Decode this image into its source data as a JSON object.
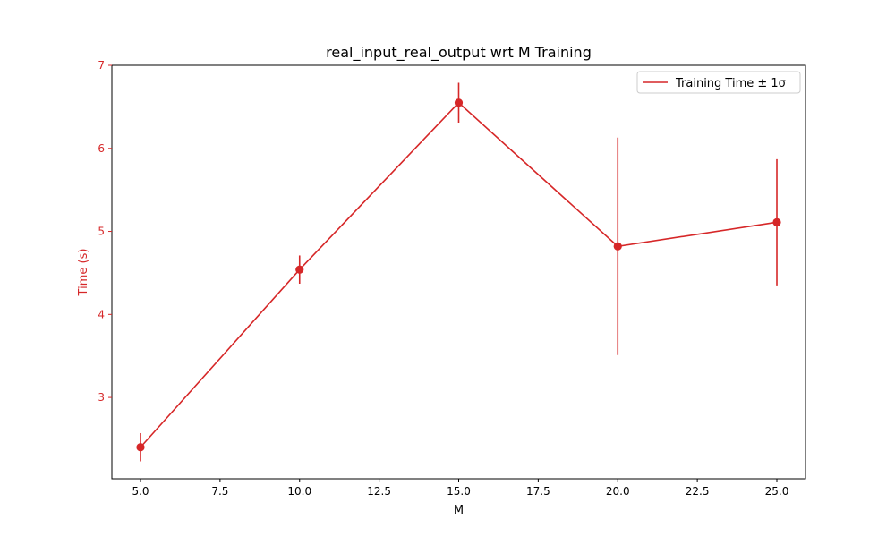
{
  "chart_data": {
    "type": "line",
    "title": "real_input_real_output wrt M Training",
    "xlabel": "M",
    "ylabel": "Time (s)",
    "xlim": [
      4.1,
      25.9
    ],
    "ylim": [
      2.02,
      7.0
    ],
    "x_ticks": [
      5.0,
      7.5,
      10.0,
      12.5,
      15.0,
      17.5,
      20.0,
      22.5,
      25.0
    ],
    "x_tick_labels": [
      "5.0",
      "7.5",
      "10.0",
      "12.5",
      "15.0",
      "17.5",
      "20.0",
      "22.5",
      "25.0"
    ],
    "y_ticks": [
      3,
      4,
      5,
      6,
      7
    ],
    "y_tick_labels": [
      "3",
      "4",
      "5",
      "6",
      "7"
    ],
    "grid": false,
    "legend_position": "top-right",
    "colors": {
      "series": "#d62728",
      "axis_label": "#d62728",
      "frame": "#000000"
    },
    "series": [
      {
        "name": "Training Time ± 1σ",
        "x": [
          5,
          10,
          15,
          20,
          25
        ],
        "y": [
          2.4,
          4.54,
          6.55,
          4.82,
          5.11
        ],
        "error": [
          0.17,
          0.17,
          0.24,
          1.31,
          0.76
        ]
      }
    ]
  }
}
